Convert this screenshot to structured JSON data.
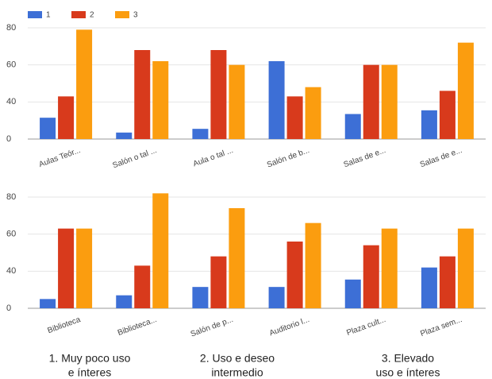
{
  "chart_data": [
    {
      "type": "bar",
      "categories": [
        "Aulas Teór...",
        "Salón o tal ...",
        "Aula o tal ...",
        "Salón de b...",
        "Salas de e...",
        "Salas de e..."
      ],
      "series": [
        {
          "name": "1",
          "color": "#3d6fd6",
          "values": [
            23,
            7,
            11,
            62,
            27,
            31
          ]
        },
        {
          "name": "2",
          "color": "#d83a1c",
          "values": [
            43,
            68,
            68,
            43,
            60,
            46
          ]
        },
        {
          "name": "3",
          "color": "#fb9d0f",
          "values": [
            79,
            62,
            60,
            48,
            60,
            72
          ]
        }
      ],
      "ylim": [
        0,
        80
      ],
      "yticks": [
        0,
        40,
        60,
        80
      ],
      "grid": true,
      "legend": "top-left"
    },
    {
      "type": "bar",
      "categories": [
        "Biblioteca",
        "Biblioteca...",
        "Salón de p...",
        "Auditorio l...",
        "Plaza cult...",
        "Plaza sem..."
      ],
      "series": [
        {
          "color": "#3d6fd6",
          "values": [
            10,
            14,
            23,
            23,
            31,
            42
          ]
        },
        {
          "color": "#d83a1c",
          "values": [
            63,
            43,
            48,
            56,
            54,
            48
          ]
        },
        {
          "color": "#fb9d0f",
          "values": [
            63,
            82,
            74,
            66,
            63,
            63
          ]
        }
      ],
      "ylim": [
        0,
        80
      ],
      "yticks": [
        0,
        40,
        60,
        80
      ],
      "grid": true
    }
  ],
  "captions": [
    [
      "1. Muy poco uso",
      "e ínteres"
    ],
    [
      "2. Uso e deseo",
      "intermedio"
    ],
    [
      "3. Elevado",
      "uso e ínteres"
    ]
  ]
}
